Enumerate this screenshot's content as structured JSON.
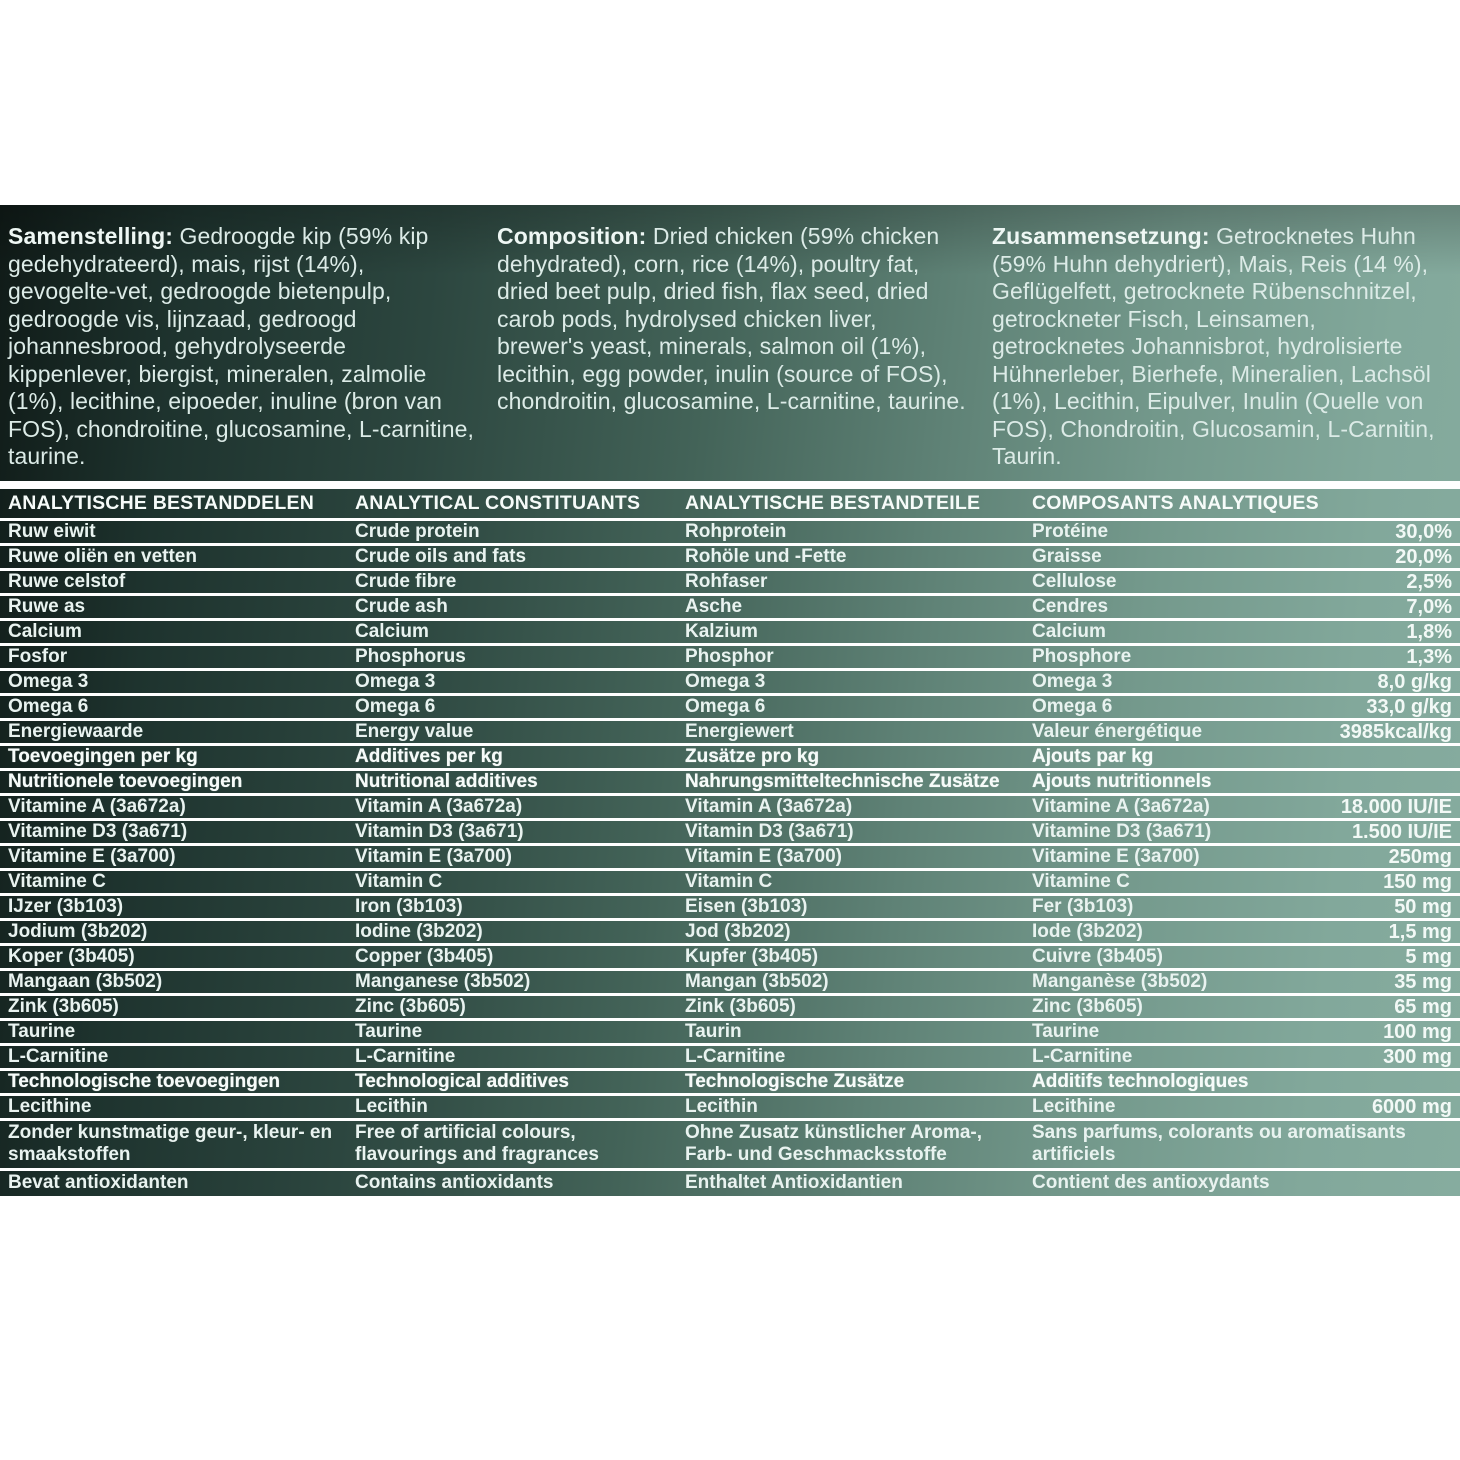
{
  "composition": {
    "columns": [
      {
        "label": "Samenstelling:",
        "text": " Gedroogde kip (59% kip gedehydrateerd), mais, rijst (14%), gevogelte-vet, gedroogde bietenpulp, gedroogde vis, lijnzaad, gedroogd johannesbrood, gehydrolyseerde kippenlever, biergist, mineralen,  zalmolie (1%), lecithine, eipoeder, inuline (bron van FOS), chondroitine, glucosamine, L-carnitine, taurine."
      },
      {
        "label": "Composition:",
        "text": " Dried chicken (59% chicken dehydrated), corn, rice (14%), poultry fat, dried beet pulp, dried fish, flax seed, dried carob pods, hydrolysed chicken liver, brewer's yeast, minerals, salmon oil (1%), lecithin, egg powder, inulin (source of FOS), chondroitin, glucosamine, L-carnitine, taurine."
      },
      {
        "label": "Zusammensetzung:",
        "text": " Getrocknetes Huhn (59% Huhn dehydriert), Mais, Reis (14 %), Geflügelfett, getrocknete Rübenschnitzel, getrockneter Fisch, Leinsamen, getrocknetes Johannisbrot, hydrolisierte Hühnerleber, Bierhefe, Mineralien, Lachsöl (1%), Lecithin, Eipulver, Inulin (Quelle von FOS), Chondroitin, Glucosamin, L-Carnitin, Taurin."
      }
    ]
  },
  "table": {
    "headers": [
      "ANALYTISCHE BESTANDDELEN",
      "ANALYTICAL CONSTITUANTS",
      "ANALYTISCHE BESTANDTEILE",
      "COMPOSANTS ANALYTIQUES"
    ],
    "rows": [
      {
        "nl": "Ruw eiwit",
        "en": "Crude protein",
        "de": "Rohprotein",
        "fr": "Protéine",
        "value": "30,0%",
        "section": false,
        "tall": false
      },
      {
        "nl": "Ruwe oliën en vetten",
        "en": "Crude oils and fats",
        "de": "Rohöle und -Fette",
        "fr": "Graisse",
        "value": "20,0%",
        "section": false,
        "tall": false
      },
      {
        "nl": "Ruwe celstof",
        "en": "Crude fibre",
        "de": "Rohfaser",
        "fr": "Cellulose",
        "value": "2,5%",
        "section": false,
        "tall": false
      },
      {
        "nl": "Ruwe as",
        "en": "Crude ash",
        "de": "Asche",
        "fr": "Cendres",
        "value": "7,0%",
        "section": false,
        "tall": false
      },
      {
        "nl": "Calcium",
        "en": "Calcium",
        "de": "Kalzium",
        "fr": "Calcium",
        "value": "1,8%",
        "section": false,
        "tall": false
      },
      {
        "nl": "Fosfor",
        "en": "Phosphorus",
        "de": "Phosphor",
        "fr": "Phosphore",
        "value": "1,3%",
        "section": false,
        "tall": false
      },
      {
        "nl": "Omega 3",
        "en": "Omega 3",
        "de": "Omega 3",
        "fr": "Omega 3",
        "value": "8,0 g/kg",
        "section": false,
        "tall": false
      },
      {
        "nl": "Omega 6",
        "en": "Omega 6",
        "de": "Omega 6",
        "fr": "Omega 6",
        "value": "33,0 g/kg",
        "section": false,
        "tall": false
      },
      {
        "nl": "Energiewaarde",
        "en": "Energy value",
        "de": "Energiewert",
        "fr": "Valeur énergétique",
        "value": "3985kcal/kg",
        "section": false,
        "tall": false
      },
      {
        "nl": "Toevoegingen per kg",
        "en": "Additives per kg",
        "de": "Zusätze pro kg",
        "fr": "Ajouts par kg",
        "value": "",
        "section": true,
        "tall": false
      },
      {
        "nl": "Nutritionele toevoegingen",
        "en": "Nutritional additives",
        "de": "Nahrungsmitteltechnische Zusätze",
        "fr": "Ajouts nutritionnels",
        "value": "",
        "section": true,
        "tall": false
      },
      {
        "nl": "Vitamine A (3a672a)",
        "en": "Vitamin A (3a672a)",
        "de": "Vitamin A (3a672a)",
        "fr": "Vitamine A (3a672a)",
        "value": "18.000 IU/IE",
        "section": false,
        "tall": false
      },
      {
        "nl": "Vitamine D3 (3a671)",
        "en": "Vitamin D3 (3a671)",
        "de": "Vitamin D3 (3a671)",
        "fr": "Vitamine D3 (3a671)",
        "value": "1.500 IU/IE",
        "section": false,
        "tall": false
      },
      {
        "nl": "Vitamine E (3a700)",
        "en": "Vitamin E (3a700)",
        "de": "Vitamin E (3a700)",
        "fr": "Vitamine E (3a700)",
        "value": "250mg",
        "section": false,
        "tall": false
      },
      {
        "nl": "Vitamine C",
        "en": "Vitamin C",
        "de": "Vitamin C",
        "fr": "Vitamine C",
        "value": "150 mg",
        "section": false,
        "tall": false
      },
      {
        "nl": "IJzer (3b103)",
        "en": "Iron (3b103)",
        "de": "Eisen (3b103)",
        "fr": "Fer (3b103)",
        "value": "50 mg",
        "section": false,
        "tall": false
      },
      {
        "nl": "Jodium (3b202)",
        "en": "Iodine (3b202)",
        "de": "Jod (3b202)",
        "fr": "Iode (3b202)",
        "value": "1,5 mg",
        "section": false,
        "tall": false
      },
      {
        "nl": "Koper (3b405)",
        "en": "Copper (3b405)",
        "de": "Kupfer (3b405)",
        "fr": "Cuivre (3b405)",
        "value": "5 mg",
        "section": false,
        "tall": false
      },
      {
        "nl": "Mangaan (3b502)",
        "en": "Manganese (3b502)",
        "de": "Mangan (3b502)",
        "fr": "Manganèse (3b502)",
        "value": "35 mg",
        "section": false,
        "tall": false
      },
      {
        "nl": "Zink (3b605)",
        "en": "Zinc (3b605)",
        "de": "Zink (3b605)",
        "fr": "Zinc (3b605)",
        "value": "65 mg",
        "section": false,
        "tall": false
      },
      {
        "nl": "Taurine",
        "en": "Taurine",
        "de": "Taurin",
        "fr": "Taurine",
        "value": "100 mg",
        "section": false,
        "tall": false
      },
      {
        "nl": "L-Carnitine",
        "en": "L-Carnitine",
        "de": "L-Carnitine",
        "fr": "L-Carnitine",
        "value": "300 mg",
        "section": false,
        "tall": false
      },
      {
        "nl": "Technologische toevoegingen",
        "en": "Technological additives",
        "de": "Technologische Zusätze",
        "fr": "Additifs technologiques",
        "value": "",
        "section": true,
        "tall": false
      },
      {
        "nl": "Lecithine",
        "en": "Lecithin",
        "de": "Lecithin",
        "fr": "Lecithine",
        "value": "6000 mg",
        "section": false,
        "tall": false
      },
      {
        "nl": "Zonder kunstmatige geur-, kleur- en smaakstoffen",
        "en": "Free of artificial colours, flavourings and fragrances",
        "de": "Ohne Zusatz künstlicher Aroma-, Farb- und Geschmacksstoffe",
        "fr": "Sans parfums, colorants ou aromatisants artificiels",
        "value": "",
        "section": false,
        "tall": true
      },
      {
        "nl": "Bevat antioxidanten",
        "en": "Contains antioxidants",
        "de": "Enthaltet Antioxidantien",
        "fr": "Contient des antioxydants",
        "value": "",
        "section": false,
        "tall": false
      }
    ]
  },
  "colors": {
    "panel_dark": "#101b18",
    "panel_light": "#86ac9f",
    "separator": "#ffffff",
    "text": "#e4f0ec"
  }
}
